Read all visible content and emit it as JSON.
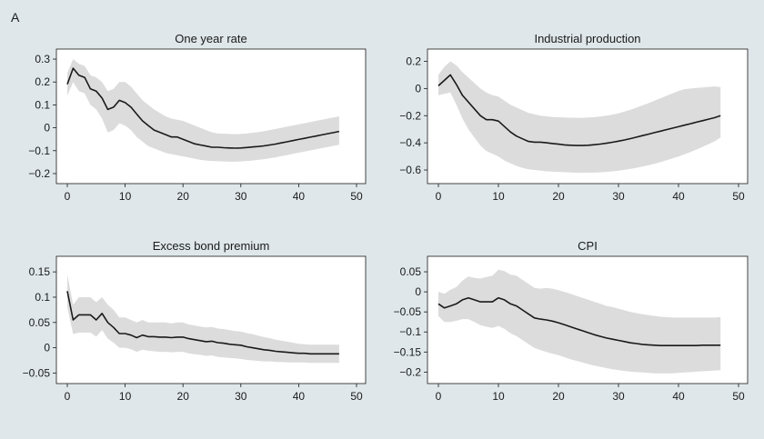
{
  "figure": {
    "panel_letter": "A",
    "background": "#dfe7ea",
    "plot_background": "#ffffff",
    "line_color": "#1a1a1a",
    "band_color": "#dcdcdc"
  },
  "chart_data": [
    {
      "type": "line",
      "title": "One year rate",
      "xlabel": "",
      "ylabel": "",
      "xlim": [
        0,
        50
      ],
      "ylim": [
        -0.22,
        0.32
      ],
      "xticks": [
        0,
        10,
        20,
        30,
        40,
        50
      ],
      "yticks": [
        -0.2,
        -0.1,
        0,
        0.1,
        0.2,
        0.3
      ],
      "ytick_labels": [
        "−0.2",
        "−0.1",
        "0",
        "0.1",
        "0.2",
        "0.3"
      ],
      "grid": false,
      "x": [
        0,
        1,
        2,
        3,
        4,
        5,
        6,
        7,
        8,
        9,
        10,
        11,
        12,
        13,
        14,
        15,
        16,
        17,
        18,
        19,
        20,
        21,
        22,
        23,
        24,
        25,
        26,
        27,
        28,
        29,
        30,
        31,
        32,
        33,
        34,
        35,
        36,
        37,
        38,
        39,
        40,
        41,
        42,
        43,
        44,
        45,
        46,
        47
      ],
      "series": [
        {
          "values": [
            0.19,
            0.26,
            0.23,
            0.22,
            0.17,
            0.16,
            0.13,
            0.08,
            0.09,
            0.12,
            0.11,
            0.09,
            0.06,
            0.03,
            0.01,
            -0.01,
            -0.02,
            -0.03,
            -0.04,
            -0.04,
            -0.05,
            -0.06,
            -0.07,
            -0.075,
            -0.08,
            -0.085,
            -0.085,
            -0.087,
            -0.088,
            -0.089,
            -0.088,
            -0.086,
            -0.084,
            -0.082,
            -0.079,
            -0.075,
            -0.071,
            -0.066,
            -0.061,
            -0.056,
            -0.051,
            -0.046,
            -0.041,
            -0.036,
            -0.031,
            -0.026,
            -0.021,
            -0.016
          ],
          "lower": [
            0.14,
            0.2,
            0.16,
            0.15,
            0.1,
            0.08,
            0.04,
            -0.02,
            -0.01,
            0.02,
            0.01,
            -0.01,
            -0.04,
            -0.06,
            -0.08,
            -0.09,
            -0.1,
            -0.11,
            -0.115,
            -0.12,
            -0.125,
            -0.13,
            -0.135,
            -0.14,
            -0.143,
            -0.145,
            -0.146,
            -0.147,
            -0.148,
            -0.148,
            -0.147,
            -0.145,
            -0.143,
            -0.14,
            -0.137,
            -0.133,
            -0.129,
            -0.124,
            -0.119,
            -0.114,
            -0.109,
            -0.104,
            -0.099,
            -0.094,
            -0.089,
            -0.084,
            -0.079,
            -0.074
          ],
          "upper": [
            0.24,
            0.3,
            0.28,
            0.27,
            0.23,
            0.22,
            0.2,
            0.16,
            0.17,
            0.2,
            0.2,
            0.18,
            0.15,
            0.12,
            0.1,
            0.08,
            0.065,
            0.05,
            0.04,
            0.035,
            0.03,
            0.02,
            0.01,
            0.0,
            -0.01,
            -0.02,
            -0.025,
            -0.026,
            -0.027,
            -0.028,
            -0.027,
            -0.025,
            -0.022,
            -0.019,
            -0.015,
            -0.01,
            -0.005,
            0.0,
            0.005,
            0.01,
            0.015,
            0.02,
            0.025,
            0.03,
            0.035,
            0.04,
            0.045,
            0.05
          ]
        }
      ]
    },
    {
      "type": "line",
      "title": "Industrial production",
      "xlabel": "",
      "ylabel": "",
      "xlim": [
        0,
        50
      ],
      "ylim": [
        -0.66,
        0.25
      ],
      "xticks": [
        0,
        10,
        20,
        30,
        40,
        50
      ],
      "yticks": [
        -0.6,
        -0.4,
        -0.2,
        0,
        0.2
      ],
      "ytick_labels": [
        "−0.6",
        "−0.4",
        "−0.2",
        "0",
        "0.2"
      ],
      "grid": false,
      "x": [
        0,
        1,
        2,
        3,
        4,
        5,
        6,
        7,
        8,
        9,
        10,
        11,
        12,
        13,
        14,
        15,
        16,
        17,
        18,
        19,
        20,
        21,
        22,
        23,
        24,
        25,
        26,
        27,
        28,
        29,
        30,
        31,
        32,
        33,
        34,
        35,
        36,
        37,
        38,
        39,
        40,
        41,
        42,
        43,
        44,
        45,
        46,
        47
      ],
      "series": [
        {
          "values": [
            0.02,
            0.06,
            0.1,
            0.03,
            -0.05,
            -0.1,
            -0.15,
            -0.2,
            -0.23,
            -0.23,
            -0.24,
            -0.28,
            -0.32,
            -0.35,
            -0.37,
            -0.39,
            -0.395,
            -0.395,
            -0.4,
            -0.405,
            -0.41,
            -0.415,
            -0.418,
            -0.42,
            -0.42,
            -0.418,
            -0.414,
            -0.409,
            -0.403,
            -0.396,
            -0.388,
            -0.379,
            -0.369,
            -0.358,
            -0.347,
            -0.336,
            -0.325,
            -0.314,
            -0.303,
            -0.292,
            -0.281,
            -0.27,
            -0.259,
            -0.248,
            -0.237,
            -0.226,
            -0.215,
            -0.2
          ],
          "lower": [
            -0.05,
            -0.04,
            -0.03,
            -0.12,
            -0.22,
            -0.3,
            -0.36,
            -0.42,
            -0.46,
            -0.48,
            -0.5,
            -0.53,
            -0.55,
            -0.57,
            -0.585,
            -0.595,
            -0.6,
            -0.605,
            -0.61,
            -0.612,
            -0.614,
            -0.616,
            -0.618,
            -0.62,
            -0.62,
            -0.62,
            -0.619,
            -0.617,
            -0.614,
            -0.61,
            -0.605,
            -0.599,
            -0.592,
            -0.584,
            -0.575,
            -0.565,
            -0.554,
            -0.542,
            -0.529,
            -0.515,
            -0.5,
            -0.484,
            -0.467,
            -0.449,
            -0.43,
            -0.41,
            -0.389,
            -0.36
          ],
          "upper": [
            0.1,
            0.16,
            0.2,
            0.17,
            0.12,
            0.08,
            0.04,
            0.0,
            -0.03,
            -0.05,
            -0.06,
            -0.09,
            -0.12,
            -0.14,
            -0.16,
            -0.18,
            -0.19,
            -0.2,
            -0.205,
            -0.21,
            -0.212,
            -0.214,
            -0.215,
            -0.216,
            -0.216,
            -0.214,
            -0.211,
            -0.206,
            -0.2,
            -0.192,
            -0.182,
            -0.17,
            -0.156,
            -0.141,
            -0.125,
            -0.108,
            -0.09,
            -0.072,
            -0.054,
            -0.036,
            -0.018,
            -0.005,
            0.0,
            0.004,
            0.008,
            0.012,
            0.015,
            0.01
          ]
        }
      ]
    },
    {
      "type": "line",
      "title": "Excess bond premium",
      "xlabel": "",
      "ylabel": "",
      "xlim": [
        0,
        50
      ],
      "ylim": [
        -0.06,
        0.17
      ],
      "xticks": [
        0,
        10,
        20,
        30,
        40,
        50
      ],
      "yticks": [
        -0.05,
        0,
        0.05,
        0.1,
        0.15
      ],
      "ytick_labels": [
        "−0.05",
        "0",
        "0.05",
        "0.1",
        "0.15"
      ],
      "grid": false,
      "x": [
        0,
        1,
        2,
        3,
        4,
        5,
        6,
        7,
        8,
        9,
        10,
        11,
        12,
        13,
        14,
        15,
        16,
        17,
        18,
        19,
        20,
        21,
        22,
        23,
        24,
        25,
        26,
        27,
        28,
        29,
        30,
        31,
        32,
        33,
        34,
        35,
        36,
        37,
        38,
        39,
        40,
        41,
        42,
        43,
        44,
        45,
        46,
        47
      ],
      "series": [
        {
          "values": [
            0.112,
            0.055,
            0.065,
            0.065,
            0.065,
            0.055,
            0.068,
            0.05,
            0.04,
            0.028,
            0.028,
            0.025,
            0.02,
            0.025,
            0.022,
            0.022,
            0.021,
            0.021,
            0.02,
            0.021,
            0.021,
            0.018,
            0.016,
            0.014,
            0.012,
            0.013,
            0.01,
            0.009,
            0.007,
            0.006,
            0.005,
            0.002,
            0.0,
            -0.002,
            -0.004,
            -0.005,
            -0.007,
            -0.008,
            -0.009,
            -0.01,
            -0.011,
            -0.011,
            -0.012,
            -0.012,
            -0.012,
            -0.012,
            -0.012,
            -0.012
          ],
          "lower": [
            0.08,
            0.027,
            0.03,
            0.03,
            0.03,
            0.022,
            0.035,
            0.018,
            0.01,
            0.0,
            0.0,
            -0.003,
            -0.008,
            -0.004,
            -0.006,
            -0.007,
            -0.008,
            -0.008,
            -0.009,
            -0.008,
            -0.008,
            -0.011,
            -0.013,
            -0.014,
            -0.016,
            -0.015,
            -0.018,
            -0.019,
            -0.02,
            -0.021,
            -0.022,
            -0.024,
            -0.025,
            -0.026,
            -0.027,
            -0.027,
            -0.028,
            -0.028,
            -0.029,
            -0.029,
            -0.029,
            -0.029,
            -0.03,
            -0.03,
            -0.03,
            -0.03,
            -0.03,
            -0.03
          ],
          "upper": [
            0.145,
            0.085,
            0.1,
            0.1,
            0.1,
            0.09,
            0.1,
            0.085,
            0.075,
            0.06,
            0.06,
            0.055,
            0.05,
            0.055,
            0.05,
            0.05,
            0.05,
            0.05,
            0.048,
            0.05,
            0.05,
            0.046,
            0.044,
            0.042,
            0.04,
            0.041,
            0.038,
            0.037,
            0.035,
            0.033,
            0.032,
            0.029,
            0.027,
            0.024,
            0.021,
            0.019,
            0.016,
            0.014,
            0.012,
            0.01,
            0.008,
            0.007,
            0.006,
            0.006,
            0.006,
            0.006,
            0.006,
            0.006
          ]
        }
      ]
    },
    {
      "type": "line",
      "title": "CPI",
      "xlabel": "",
      "ylabel": "",
      "xlim": [
        0,
        50
      ],
      "ylim": [
        -0.215,
        0.075
      ],
      "xticks": [
        0,
        10,
        20,
        30,
        40,
        50
      ],
      "yticks": [
        -0.2,
        -0.15,
        -0.1,
        -0.05,
        0,
        0.05
      ],
      "ytick_labels": [
        "−0.2",
        "−0.15",
        "−0.1",
        "−0.05",
        "0",
        "0.05"
      ],
      "grid": false,
      "x": [
        0,
        1,
        2,
        3,
        4,
        5,
        6,
        7,
        8,
        9,
        10,
        11,
        12,
        13,
        14,
        15,
        16,
        17,
        18,
        19,
        20,
        21,
        22,
        23,
        24,
        25,
        26,
        27,
        28,
        29,
        30,
        31,
        32,
        33,
        34,
        35,
        36,
        37,
        38,
        39,
        40,
        41,
        42,
        43,
        44,
        45,
        46,
        47
      ],
      "series": [
        {
          "values": [
            -0.03,
            -0.04,
            -0.035,
            -0.03,
            -0.02,
            -0.015,
            -0.02,
            -0.025,
            -0.025,
            -0.025,
            -0.015,
            -0.02,
            -0.03,
            -0.035,
            -0.045,
            -0.055,
            -0.065,
            -0.068,
            -0.07,
            -0.073,
            -0.077,
            -0.082,
            -0.087,
            -0.092,
            -0.097,
            -0.102,
            -0.107,
            -0.111,
            -0.115,
            -0.118,
            -0.121,
            -0.124,
            -0.127,
            -0.129,
            -0.131,
            -0.132,
            -0.133,
            -0.134,
            -0.134,
            -0.134,
            -0.134,
            -0.134,
            -0.134,
            -0.134,
            -0.133,
            -0.133,
            -0.133,
            -0.133
          ],
          "lower": [
            -0.06,
            -0.075,
            -0.075,
            -0.072,
            -0.068,
            -0.068,
            -0.075,
            -0.083,
            -0.087,
            -0.09,
            -0.085,
            -0.092,
            -0.103,
            -0.11,
            -0.12,
            -0.13,
            -0.14,
            -0.145,
            -0.15,
            -0.154,
            -0.158,
            -0.163,
            -0.168,
            -0.172,
            -0.176,
            -0.18,
            -0.184,
            -0.187,
            -0.19,
            -0.193,
            -0.195,
            -0.197,
            -0.199,
            -0.2,
            -0.201,
            -0.202,
            -0.203,
            -0.203,
            -0.203,
            -0.203,
            -0.202,
            -0.201,
            -0.2,
            -0.199,
            -0.198,
            -0.197,
            -0.196,
            -0.195
          ],
          "upper": [
            0.0,
            -0.005,
            0.005,
            0.012,
            0.028,
            0.038,
            0.035,
            0.033,
            0.037,
            0.04,
            0.055,
            0.052,
            0.043,
            0.04,
            0.03,
            0.02,
            0.01,
            0.008,
            0.01,
            0.008,
            0.004,
            0.0,
            -0.005,
            -0.01,
            -0.015,
            -0.02,
            -0.025,
            -0.03,
            -0.035,
            -0.038,
            -0.042,
            -0.046,
            -0.05,
            -0.053,
            -0.056,
            -0.058,
            -0.06,
            -0.062,
            -0.063,
            -0.064,
            -0.064,
            -0.064,
            -0.064,
            -0.064,
            -0.064,
            -0.064,
            -0.064,
            -0.063
          ]
        }
      ]
    }
  ]
}
